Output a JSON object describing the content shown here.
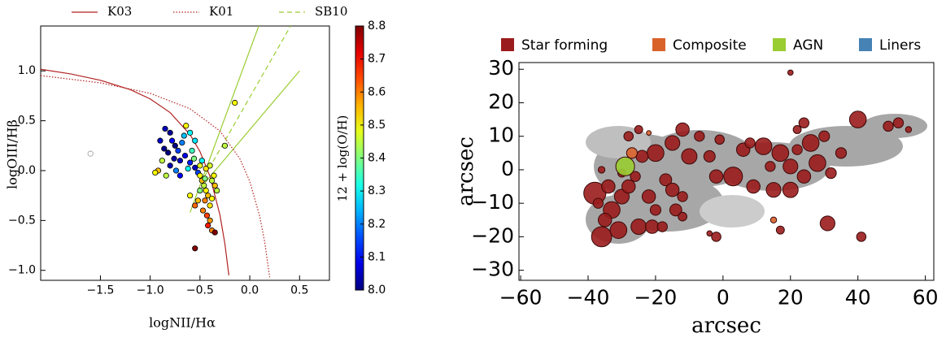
{
  "chart_data": [
    {
      "type": "scatter",
      "xlabel": "logNII/Hα",
      "ylabel": "logOIII/Hβ",
      "xlim": [
        -2.1,
        0.8
      ],
      "ylim": [
        -1.1,
        1.45
      ],
      "xticks": [
        {
          "value": -1.5,
          "label": "−1.5"
        },
        {
          "value": -1.0,
          "label": "−1.0"
        },
        {
          "value": -0.5,
          "label": "−0.5"
        },
        {
          "value": 0.0,
          "label": "0.0"
        },
        0.5
      ],
      "yticks": [
        {
          "value": -1.0,
          "label": "−1.0"
        },
        {
          "value": -0.5,
          "label": "−0.5"
        },
        {
          "value": 0.0,
          "label": "0.0"
        },
        0.5,
        {
          "value": 1.0,
          "label": "1.0"
        }
      ],
      "points": {
        "x": [
          -0.85,
          -0.8,
          -0.78,
          -0.75,
          -0.72,
          -0.7,
          -0.76,
          -0.82,
          -0.68,
          -0.66,
          -0.65,
          -0.6,
          -0.62,
          -0.7,
          -0.8,
          -0.74,
          -0.58,
          -0.56,
          -0.55,
          -0.52,
          -0.9,
          -0.86,
          -0.64,
          -0.6,
          -0.55,
          -0.88,
          -0.92,
          -0.95,
          -0.84,
          -0.5,
          -0.48,
          -0.46,
          -0.44,
          -0.42,
          -0.45,
          -0.4,
          -0.38,
          -0.36,
          -0.5,
          -0.52,
          -0.47,
          -0.43,
          -0.4,
          -0.38,
          -0.35,
          -0.33,
          -0.5,
          -0.44,
          -0.4,
          -0.55,
          -0.6,
          -0.42,
          -0.38,
          -0.45,
          -0.48,
          -0.15,
          -0.25,
          -0.55,
          -0.35,
          -1.6
        ],
        "y": [
          0.42,
          0.38,
          0.3,
          0.25,
          0.2,
          0.1,
          0.12,
          0.18,
          0.28,
          0.35,
          0.15,
          0.08,
          0.02,
          -0.05,
          0.05,
          0.0,
          0.2,
          0.12,
          0.03,
          -0.02,
          0.3,
          0.22,
          0.45,
          0.38,
          0.3,
          0.1,
          0.0,
          -0.02,
          -0.05,
          -0.05,
          -0.1,
          -0.15,
          -0.2,
          -0.25,
          -0.3,
          -0.35,
          -0.1,
          -0.05,
          -0.2,
          -0.3,
          -0.4,
          -0.45,
          -0.5,
          -0.28,
          -0.15,
          -0.2,
          0.05,
          0.02,
          0.05,
          -0.35,
          -0.25,
          -0.55,
          -0.6,
          -0.08,
          0.1,
          0.68,
          0.25,
          -0.78,
          -0.62,
          0.17
        ],
        "z": [
          8.05,
          8.02,
          8.1,
          8.0,
          8.15,
          8.05,
          8.03,
          8.0,
          8.2,
          8.25,
          8.08,
          8.12,
          8.3,
          8.1,
          8.04,
          8.2,
          8.35,
          8.4,
          8.05,
          8.15,
          8.06,
          8.01,
          8.5,
          8.3,
          8.28,
          8.45,
          8.55,
          8.5,
          8.45,
          8.5,
          8.55,
          8.45,
          8.5,
          8.55,
          8.6,
          8.52,
          8.45,
          8.5,
          8.4,
          8.55,
          8.6,
          8.65,
          8.58,
          8.5,
          8.55,
          8.45,
          8.48,
          8.52,
          8.47,
          8.62,
          8.5,
          8.68,
          8.6,
          8.4,
          8.3,
          8.5,
          8.45,
          8.8,
          8.8,
          null
        ]
      },
      "colorbar": {
        "label": "12 + log(O/H)",
        "lim": [
          8.0,
          8.8
        ],
        "colormap": "jet",
        "ticks": [
          {
            "value": 8.0,
            "label": "8.0"
          },
          8.1,
          8.2,
          8.3,
          8.4,
          8.5,
          8.6,
          8.7,
          8.8
        ]
      },
      "lines": [
        {
          "name": "K03",
          "color": "#b22222",
          "style": "solid",
          "x": [
            -2.1,
            -1.8,
            -1.5,
            -1.2,
            -1.0,
            -0.8,
            -0.6,
            -0.5,
            -0.4,
            -0.3,
            -0.25,
            -0.21
          ],
          "y": [
            1.016,
            0.97,
            0.906,
            0.812,
            0.719,
            0.582,
            0.362,
            0.191,
            -0.056,
            -0.443,
            -0.733,
            -1.05
          ]
        },
        {
          "name": "K01",
          "color": "#b22222",
          "style": "dotted",
          "x": [
            -2.1,
            -1.5,
            -1.0,
            -0.6,
            -0.3,
            -0.1,
            0.0,
            0.1,
            0.15,
            0.2
          ],
          "y": [
            0.953,
            0.88,
            0.775,
            0.62,
            0.398,
            0.12,
            -0.108,
            -0.459,
            -0.716,
            -1.07
          ]
        },
        {
          "name": "SB10",
          "color": "#9acd32",
          "style": "dashed",
          "x": [
            -0.45,
            0.41
          ],
          "y": [
            -0.05,
            1.45
          ]
        }
      ],
      "extra_lines": [
        {
          "color": "#9acd32",
          "style": "solid",
          "x": [
            -0.6,
            0.09
          ],
          "y": [
            -0.42,
            1.45
          ]
        },
        {
          "color": "#9acd32",
          "style": "solid",
          "x": [
            -0.45,
            0.5
          ],
          "y": [
            -0.12,
            1.0
          ]
        }
      ]
    },
    {
      "type": "bubble",
      "xlabel": "arcsec",
      "ylabel": "arcsec",
      "xlim": [
        -60.5,
        62.5
      ],
      "ylim": [
        -33,
        32
      ],
      "xticks": [
        {
          "value": -60,
          "label": "−60"
        },
        {
          "value": -40,
          "label": "−40"
        },
        {
          "value": -20,
          "label": "−20"
        },
        0,
        20,
        40,
        60
      ],
      "yticks": [
        {
          "value": -30,
          "label": "−30"
        },
        {
          "value": -20,
          "label": "−20"
        },
        {
          "value": -10,
          "label": "−10"
        },
        0,
        10,
        20,
        30
      ],
      "series": [
        {
          "name": "Star forming",
          "color": "#9b1c1c",
          "x": [
            -38,
            -36,
            -33,
            -35,
            -31,
            -30,
            -34,
            -28,
            -26,
            -25,
            -21,
            -22,
            -20,
            -18,
            -17,
            -15,
            -14,
            -12,
            -20,
            -15,
            -12,
            -10,
            -7,
            -4,
            -2,
            -1,
            3,
            6,
            8,
            9,
            12,
            15,
            14,
            17,
            20,
            22,
            20,
            24,
            26,
            28,
            30,
            32,
            35,
            40,
            49,
            52,
            55,
            24,
            22,
            20,
            41,
            -2,
            -4,
            31,
            17,
            -24,
            -28,
            -25,
            -12,
            -30,
            -36,
            -37
          ],
          "y": [
            -7,
            -20,
            -12,
            -15,
            -18,
            -8,
            -5,
            -5,
            -2,
            -17,
            -17,
            -8,
            -12,
            -17,
            -3,
            -6,
            -12,
            -14,
            5,
            8,
            12,
            4,
            10,
            4,
            -2,
            9,
            -2,
            6,
            8,
            -5,
            7,
            -6,
            1,
            5,
            1,
            6,
            -6,
            -2,
            8,
            2,
            10,
            -1,
            5,
            15,
            13,
            14,
            12,
            14,
            12,
            29,
            -20,
            -20,
            -19,
            -16,
            -18,
            4,
            10,
            12,
            -8,
            -1,
            0,
            -10
          ],
          "sizes": [
            3.3,
            3,
            2.5,
            2,
            2.5,
            2.2,
            2,
            2,
            1.5,
            2.3,
            2,
            2,
            1.6,
            1.5,
            1.8,
            2,
            1.8,
            1.3,
            2.5,
            2.2,
            2,
            2.3,
            1.5,
            1.7,
            2,
            1.4,
            2.8,
            2,
            1.5,
            2,
            2.5,
            2.2,
            1.5,
            2.5,
            2.2,
            1.5,
            2.3,
            2,
            2.5,
            2.5,
            1.6,
            1.6,
            1.6,
            2.5,
            1.5,
            1.5,
            0.9,
            1.5,
            1.2,
            0.8,
            1.4,
            1.4,
            0.8,
            2.2,
            1.2,
            1.8,
            1.4,
            1.2,
            1.5,
            1.2,
            1,
            1.5
          ]
        },
        {
          "name": "Composite",
          "color": "#d9622b",
          "x": [
            -27,
            15,
            -22
          ],
          "y": [
            5,
            -15,
            11
          ],
          "sizes": [
            1.6,
            0.9,
            0.7
          ]
        },
        {
          "name": "AGN",
          "color": "#9acd32",
          "x": [
            -29
          ],
          "y": [
            1
          ],
          "sizes": [
            2.8
          ]
        },
        {
          "name": "Liners",
          "color": "#4682b4",
          "x": [],
          "y": [],
          "sizes": []
        }
      ]
    }
  ]
}
